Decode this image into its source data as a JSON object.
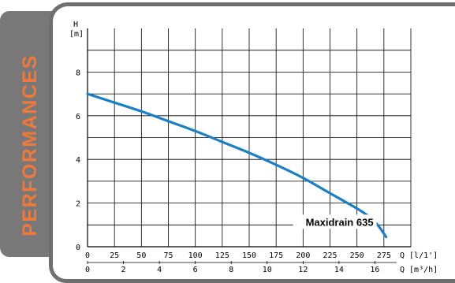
{
  "side_label": "PERFORMANCES",
  "chart_data": {
    "type": "line",
    "title": "",
    "ylabel_symbol": "H",
    "ylabel_unit": "[m]",
    "ylim": [
      0,
      10
    ],
    "yticks": [
      0,
      2,
      4,
      6,
      8
    ],
    "grid": true,
    "x_axes": [
      {
        "name": "Q",
        "unit": "[l/1']",
        "ticks": [
          0,
          25,
          50,
          75,
          100,
          125,
          150,
          175,
          200,
          225,
          250,
          275
        ],
        "tick_labels": [
          "0",
          "25",
          "50",
          "75",
          "100",
          "125",
          "150",
          "175",
          "200",
          "225",
          "250",
          "275"
        ],
        "xlim": [
          0,
          300
        ]
      },
      {
        "name": "Q",
        "unit": "[m³/h]",
        "ticks": [
          0,
          2,
          4,
          6,
          8,
          10,
          12,
          14,
          16
        ],
        "tick_labels": [
          "0",
          "2",
          "4",
          "6",
          "8",
          "10",
          "12",
          "14",
          "16"
        ],
        "xlim": [
          0,
          18
        ]
      }
    ],
    "series": [
      {
        "name": "Maxidrain 635",
        "color": "#1a7fc4",
        "x": [
          0,
          25,
          50,
          75,
          100,
          125,
          150,
          175,
          200,
          225,
          250,
          262,
          270,
          277
        ],
        "y": [
          7.0,
          6.6,
          6.2,
          5.75,
          5.3,
          4.8,
          4.3,
          3.75,
          3.15,
          2.45,
          1.75,
          1.35,
          0.95,
          0.45
        ]
      }
    ]
  }
}
